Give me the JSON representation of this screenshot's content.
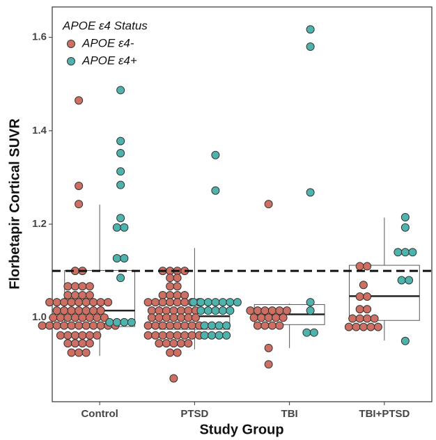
{
  "chart_data": {
    "type": "box-swarm",
    "x_label": "Study Group",
    "y_label": "Florbetapir Cortical SUVR",
    "legend_title": "APOE ε4 Status",
    "legend_position": "top-left",
    "categories": [
      "Control",
      "PTSD",
      "TBI",
      "TBI+PTSD"
    ],
    "ylim": [
      0.82,
      1.665
    ],
    "yticks": [
      {
        "value": 1,
        "label": "1.0"
      },
      1.2,
      1.4,
      1.6
    ],
    "reference_line": 1.1,
    "boxes": [
      {
        "low": 0.918,
        "q1": 0.981,
        "median": 1.015,
        "q3": 1.101,
        "high": 1.242
      },
      {
        "low": 0.932,
        "q1": 0.975,
        "median": 1.003,
        "q3": 1.034,
        "high": 1.149
      },
      {
        "low": 0.935,
        "q1": 0.985,
        "median": 1.007,
        "q3": 1.028,
        "high": 1.03
      },
      {
        "low": 0.951,
        "q1": 0.994,
        "median": 1.046,
        "q3": 1.112,
        "high": 1.214
      }
    ],
    "series": [
      {
        "name": "APOE ε4-",
        "color": "#cd6f63",
        "values": [
          [
            1.465,
            1.282,
            1.243,
            1.1,
            1.1,
            1.067,
            1.067,
            1.067,
            1.067,
            1.048,
            1.048,
            1.048,
            1.048,
            1.033,
            1.033,
            1.033,
            1.033,
            1.033,
            1.033,
            1.033,
            1.033,
            1.033,
            1.015,
            1.015,
            1.015,
            1.015,
            1.015,
            1.015,
            1.015,
            1.0,
            1.0,
            1.0,
            1.0,
            1.0,
            1.0,
            1.0,
            1.0,
            0.983,
            0.983,
            0.983,
            0.983,
            0.983,
            0.983,
            0.983,
            0.983,
            0.983,
            0.983,
            0.983,
            0.962,
            0.962,
            0.962,
            0.962,
            0.962,
            0.962,
            0.945,
            0.945,
            0.945,
            0.945,
            0.925,
            0.925,
            0.925
          ],
          [
            1.1,
            1.1,
            1.1,
            1.1,
            1.085,
            1.085,
            1.067,
            1.067,
            1.048,
            1.048,
            1.048,
            1.048,
            1.033,
            1.033,
            1.033,
            1.033,
            1.033,
            1.033,
            1.033,
            1.033,
            1.015,
            1.015,
            1.015,
            1.015,
            1.015,
            1.015,
            1.015,
            1.0,
            1.0,
            1.0,
            1.0,
            1.0,
            1.0,
            1.0,
            0.983,
            0.983,
            0.983,
            0.983,
            0.983,
            0.983,
            0.983,
            0.983,
            0.962,
            0.962,
            0.962,
            0.962,
            0.962,
            0.962,
            0.962,
            0.962,
            0.945,
            0.945,
            0.945,
            0.945,
            0.945,
            0.925,
            0.925,
            0.87
          ],
          [
            1.243,
            1.015,
            1.015,
            1.015,
            1.015,
            1.015,
            1.015,
            1.0,
            1.0,
            1.0,
            1.0,
            1.0,
            0.983,
            0.983,
            0.983,
            0.983,
            0.935,
            0.9
          ],
          [
            1.11,
            1.11,
            1.07,
            1.045,
            1.045,
            1.018,
            1.018,
            0.998,
            0.998,
            0.998,
            0.998,
            0.98,
            0.98,
            0.98,
            0.98,
            0.98
          ]
        ]
      },
      {
        "name": "APOE ε4+",
        "color": "#4fb3ad",
        "values": [
          [
            1.487,
            1.378,
            1.352,
            1.313,
            1.284,
            1.213,
            1.193,
            1.193,
            1.127,
            1.127,
            1.085,
            0.99,
            0.99,
            0.99,
            0.99
          ],
          [
            1.348,
            1.272,
            1.033,
            1.033,
            1.033,
            1.033,
            1.033,
            1.033,
            1.033,
            1.015,
            1.015,
            1.015,
            1.015,
            1.015,
            0.983,
            0.983,
            0.983,
            0.983,
            0.962,
            0.962,
            0.962,
            0.962
          ],
          [
            1.617,
            1.58,
            1.268,
            1.033,
            1.015,
            0.968,
            0.968
          ],
          [
            1.215,
            1.193,
            1.14,
            1.14,
            1.14,
            1.08,
            1.08,
            0.95
          ]
        ]
      }
    ]
  }
}
